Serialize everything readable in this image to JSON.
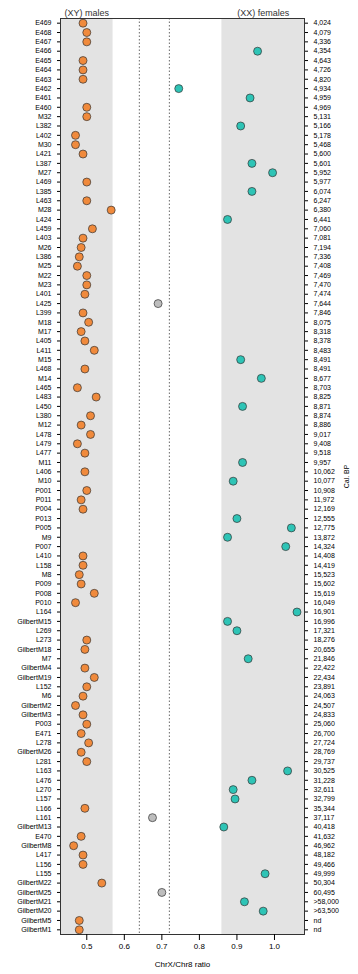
{
  "chart_data": {
    "type": "scatter",
    "x_label": "ChrX/Chr8 ratio",
    "y2_label": "Cal. BP",
    "xlim": [
      0.43,
      1.08
    ],
    "xticks": [
      0.5,
      0.6,
      0.7,
      0.8,
      0.9,
      {
        "value": 1,
        "label": "1.0"
      }
    ],
    "bands": [
      {
        "label": "(XY) males",
        "range": [
          0.43,
          0.57
        ]
      },
      {
        "label": "(XX) females",
        "range": [
          0.86,
          1.08
        ]
      }
    ],
    "reference_lines": [
      0.64,
      0.72
    ],
    "categories": [
      "E469",
      "E468",
      "E467",
      "E466",
      "E465",
      "E464",
      "E463",
      "E462",
      "E461",
      "E460",
      "M32",
      "L382",
      "L402",
      "M30",
      "L421",
      "L387",
      "M27",
      "L469",
      "L385",
      "L463",
      "M28",
      "L424",
      "L459",
      "L403",
      "M26",
      "L386",
      "M25",
      "M22",
      "M23",
      "L401",
      "L425",
      "L399",
      "M18",
      "M17",
      "L405",
      "L411",
      "M15",
      "L468",
      "M14",
      "L465",
      "L483",
      "L450",
      "L380",
      "M12",
      "L478",
      "L479",
      "L477",
      "M11",
      "L406",
      "M10",
      "P001",
      "P011",
      "P004",
      "P013",
      "P005",
      "M9",
      "P007",
      "L410",
      "L158",
      "M8",
      "P009",
      "P008",
      "P010",
      "L164",
      "GilbertM15",
      "L269",
      "L273",
      "GilbertM18",
      "M7",
      "GilbertM4",
      "GilbertM19",
      "L152",
      "M6",
      "GilbertM2",
      "GilbertM3",
      "P003",
      "E471",
      "L278",
      "GilbertM26",
      "L281",
      "L163",
      "L476",
      "L270",
      "L157",
      "L166",
      "L161",
      "GilbertM13",
      "E470",
      "GilbertM8",
      "L417",
      "L156",
      "L155",
      "GilbertM22",
      "GilbertM25",
      "GilbertM21",
      "GilbertM20",
      "GilbertM5",
      "GilbertM1"
    ],
    "ages": [
      "4,024",
      "4,079",
      "4,336",
      "4,354",
      "4,643",
      "4,726",
      "4,820",
      "4,934",
      "4,959",
      "4,969",
      "5,131",
      "5,166",
      "5,178",
      "5,468",
      "5,600",
      "5,601",
      "5,952",
      "5,977",
      "6,074",
      "6,247",
      "6,380",
      "6,441",
      "7,060",
      "7,081",
      "7,194",
      "7,336",
      "7,408",
      "7,469",
      "7,470",
      "7,474",
      "7,644",
      "7,846",
      "8,075",
      "8,318",
      "8,378",
      "8,483",
      "8,491",
      "8,491",
      "8,677",
      "8,703",
      "8,825",
      "8,871",
      "8,874",
      "8,886",
      "9,017",
      "9,408",
      "9,518",
      "9,957",
      "10,062",
      "10,077",
      "10,908",
      "11,972",
      "12,169",
      "12,555",
      "12,775",
      "13,872",
      "14,324",
      "14,408",
      "14,419",
      "15,523",
      "15,602",
      "15,619",
      "16,049",
      "16,901",
      "16,996",
      "17,321",
      "18,276",
      "20,655",
      "21,846",
      "22,422",
      "22,434",
      "23,891",
      "24,063",
      "24,507",
      "24,833",
      "25,060",
      "26,700",
      "27,724",
      "28,769",
      "29,737",
      "30,525",
      "31,228",
      "32,611",
      "32,799",
      "35,344",
      "37,117",
      "40,418",
      "41,632",
      "46,962",
      "48,182",
      "49,466",
      "49,999",
      "50,304",
      "60,495",
      ">58,000",
      ">63,500",
      "nd",
      "nd"
    ],
    "values": [
      0.49,
      0.5,
      0.5,
      0.955,
      0.49,
      0.49,
      0.49,
      0.745,
      0.935,
      0.5,
      0.5,
      0.91,
      0.47,
      0.47,
      0.49,
      0.94,
      0.995,
      0.5,
      0.94,
      0.5,
      0.565,
      0.875,
      0.515,
      0.49,
      0.485,
      0.48,
      0.475,
      0.5,
      0.5,
      0.495,
      0.69,
      0.49,
      0.505,
      0.485,
      0.495,
      0.52,
      0.91,
      0.495,
      0.965,
      0.475,
      0.525,
      0.915,
      0.51,
      0.485,
      0.51,
      0.475,
      0.495,
      0.915,
      0.495,
      0.89,
      0.5,
      0.485,
      0.49,
      0.9,
      1.045,
      0.875,
      1.03,
      0.49,
      0.49,
      0.48,
      0.485,
      0.52,
      0.47,
      1.06,
      0.875,
      0.9,
      0.5,
      0.495,
      0.93,
      0.495,
      0.52,
      0.5,
      0.49,
      0.47,
      0.49,
      0.5,
      0.485,
      0.505,
      0.485,
      0.5,
      1.035,
      0.94,
      0.89,
      0.895,
      0.495,
      0.675,
      0.865,
      0.485,
      0.465,
      0.49,
      0.49,
      0.975,
      0.54,
      0.7,
      0.92,
      0.97,
      0.48,
      0.48
    ],
    "colors": [
      "#F08A3C",
      "#F08A3C",
      "#F08A3C",
      "#2EC4B6",
      "#F08A3C",
      "#F08A3C",
      "#F08A3C",
      "#2EC4B6",
      "#2EC4B6",
      "#F08A3C",
      "#F08A3C",
      "#2EC4B6",
      "#F08A3C",
      "#F08A3C",
      "#F08A3C",
      "#2EC4B6",
      "#2EC4B6",
      "#F08A3C",
      "#2EC4B6",
      "#F08A3C",
      "#F08A3C",
      "#2EC4B6",
      "#F08A3C",
      "#F08A3C",
      "#F08A3C",
      "#F08A3C",
      "#F08A3C",
      "#F08A3C",
      "#F08A3C",
      "#F08A3C",
      "#BDBDBD",
      "#F08A3C",
      "#F08A3C",
      "#F08A3C",
      "#F08A3C",
      "#F08A3C",
      "#2EC4B6",
      "#F08A3C",
      "#2EC4B6",
      "#F08A3C",
      "#F08A3C",
      "#2EC4B6",
      "#F08A3C",
      "#F08A3C",
      "#F08A3C",
      "#F08A3C",
      "#F08A3C",
      "#2EC4B6",
      "#F08A3C",
      "#2EC4B6",
      "#F08A3C",
      "#F08A3C",
      "#F08A3C",
      "#2EC4B6",
      "#2EC4B6",
      "#2EC4B6",
      "#2EC4B6",
      "#F08A3C",
      "#F08A3C",
      "#F08A3C",
      "#F08A3C",
      "#F08A3C",
      "#F08A3C",
      "#2EC4B6",
      "#2EC4B6",
      "#2EC4B6",
      "#F08A3C",
      "#F08A3C",
      "#2EC4B6",
      "#F08A3C",
      "#F08A3C",
      "#F08A3C",
      "#F08A3C",
      "#F08A3C",
      "#F08A3C",
      "#F08A3C",
      "#F08A3C",
      "#F08A3C",
      "#F08A3C",
      "#F08A3C",
      "#2EC4B6",
      "#2EC4B6",
      "#2EC4B6",
      "#2EC4B6",
      "#F08A3C",
      "#BDBDBD",
      "#2EC4B6",
      "#F08A3C",
      "#F08A3C",
      "#F08A3C",
      "#F08A3C",
      "#2EC4B6",
      "#F08A3C",
      "#BDBDBD",
      "#2EC4B6",
      "#2EC4B6",
      "#F08A3C",
      "#F08A3C"
    ]
  }
}
